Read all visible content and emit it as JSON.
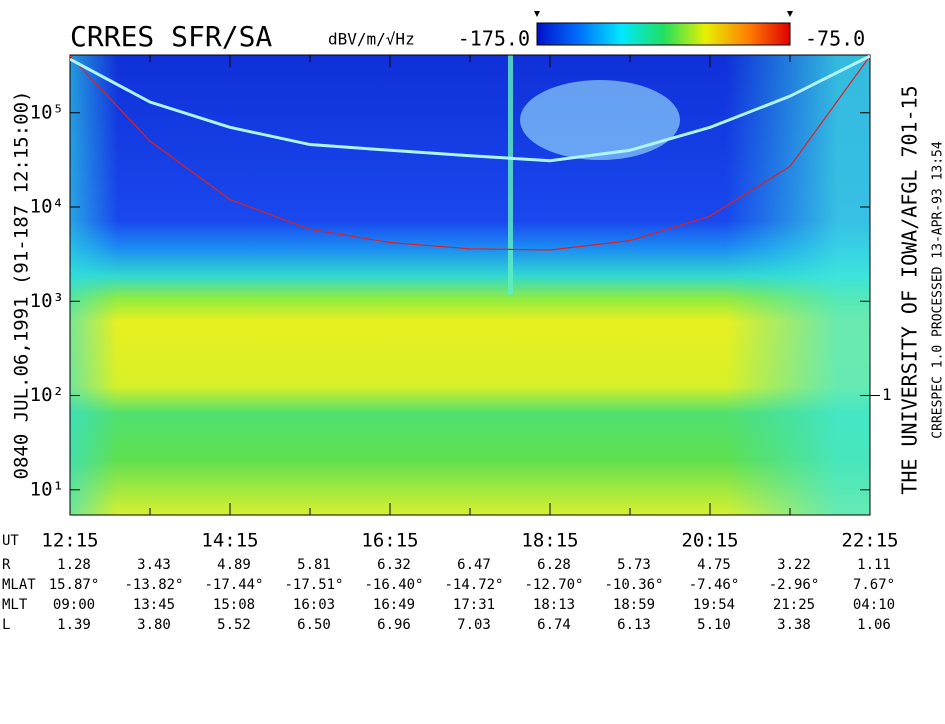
{
  "chart_data": {
    "type": "spectrogram",
    "title": "CRRES SFR/SA",
    "left_label": "0840   JUL.06,1991   (91-187 12:15:00)",
    "right_label": "THE UNIVERSITY OF IOWA/AFGL 701-15",
    "right_label2": "CRRESPEC 1.0   PROCESSED 13-APR-93   13:54",
    "colorbar": {
      "units": "dBV/m/√Hz",
      "lim": [
        {
          "value": -175,
          "label": "-175.0"
        },
        {
          "value": -75,
          "label": "-75.0"
        }
      ],
      "colors": [
        "#0010c8",
        "#0070ff",
        "#00e8ff",
        "#20e060",
        "#e8f000",
        "#ff8000",
        "#e00000"
      ]
    },
    "xlim": [
      12.25,
      22.25
    ],
    "xticks": [
      {
        "value": 12.25,
        "label": "12:15"
      },
      {
        "value": 14.25,
        "label": "14:15"
      },
      {
        "value": 16.25,
        "label": "16:15"
      },
      {
        "value": 18.25,
        "label": "18:15"
      },
      {
        "value": 20.25,
        "label": "20:15"
      },
      {
        "value": 22.25,
        "label": "22:15"
      }
    ],
    "xminorticks": [
      13.25,
      15.25,
      17.25,
      19.25,
      21.25
    ],
    "ylim": [
      5.4,
      410000
    ],
    "log_y": true,
    "yticks": [
      {
        "value": 10,
        "label": "10¹"
      },
      {
        "value": 100,
        "label": "10²"
      },
      {
        "value": 1000,
        "label": "10³"
      },
      {
        "value": 10000,
        "label": "10⁴"
      },
      {
        "value": 100000,
        "label": "10⁵"
      }
    ],
    "y2lim": [
      0.054,
      4100
    ],
    "y2ticks": [
      1
    ],
    "x": [
      12.25,
      13.25,
      14.25,
      15.25,
      16.25,
      17.25,
      18.25,
      19.25,
      20.25,
      21.25,
      22.25
    ],
    "series": [
      {
        "color": "#e02020",
        "values": [
          400000,
          50000,
          12000,
          5800,
          4200,
          3600,
          3500,
          4400,
          8000,
          27000,
          400000
        ]
      },
      {
        "color": "#b0f4ff",
        "values": [
          370000,
          130000,
          70000,
          46000,
          40000,
          35000,
          31000,
          40000,
          70000,
          150000,
          400000
        ]
      }
    ],
    "ephemeris": [
      {
        "label": "UT"
      },
      {
        "label": "R",
        "values": [
          "1.28",
          "3.43",
          "4.89",
          "5.81",
          "6.32",
          "6.47",
          "6.28",
          "5.73",
          "4.75",
          "3.22",
          "1.11"
        ]
      },
      {
        "label": "MLAT",
        "values": [
          "15.87°",
          "-13.82°",
          "-17.44°",
          "-17.51°",
          "-16.40°",
          "-14.72°",
          "-12.70°",
          "-10.36°",
          "-7.46°",
          "-2.96°",
          "7.67°"
        ]
      },
      {
        "label": "MLT",
        "values": [
          "09:00",
          "13:45",
          "15:08",
          "16:03",
          "16:49",
          "17:31",
          "18:13",
          "18:59",
          "19:54",
          "21:25",
          "04:10"
        ]
      },
      {
        "label": "L",
        "values": [
          "1.39",
          "3.80",
          "5.52",
          "6.50",
          "6.96",
          "7.03",
          "6.74",
          "6.13",
          "5.10",
          "3.38",
          "1.06"
        ]
      }
    ]
  }
}
